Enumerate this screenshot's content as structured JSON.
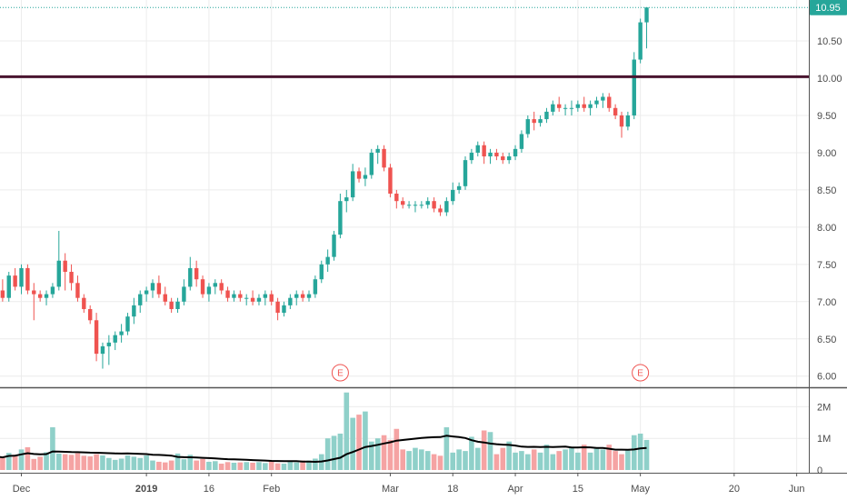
{
  "chart_data": {
    "type": "candlestick",
    "colors": {
      "up": "#26a69a",
      "down": "#ef5350",
      "vol_up": "#8fd0c9",
      "vol_down": "#f5a3a3",
      "avg_line": "#000000",
      "resistance": "#4a1530",
      "last_price": "#26a69a",
      "grid": "#ececec"
    },
    "price_axis": {
      "min": 5.85,
      "max": 11.05,
      "ticks": [
        "6.00",
        "6.50",
        "7.00",
        "7.50",
        "8.00",
        "8.50",
        "9.00",
        "9.50",
        "10.00",
        "10.50"
      ]
    },
    "volume_axis": {
      "max": 2500000,
      "ticks": [
        {
          "label": "0",
          "value": 0
        },
        {
          "label": "1M",
          "value": 1000000
        },
        {
          "label": "2M",
          "value": 2000000
        }
      ]
    },
    "x_labels": [
      {
        "label": "Dec",
        "index": 4
      },
      {
        "label": "2019",
        "index": 24
      },
      {
        "label": "16",
        "index": 34
      },
      {
        "label": "Feb",
        "index": 44
      },
      {
        "label": "Mar",
        "index": 63
      },
      {
        "label": "18",
        "index": 73
      },
      {
        "label": "Apr",
        "index": 83
      },
      {
        "label": "15",
        "index": 93
      },
      {
        "label": "May",
        "index": 103
      },
      {
        "label": "20",
        "index": 118
      },
      {
        "label": "Jun",
        "index": 128
      }
    ],
    "last_price": {
      "value": 10.95,
      "label": "10.95"
    },
    "resistance_level": 10.02,
    "earnings": [
      {
        "label": "E",
        "index": 55
      },
      {
        "label": "E",
        "index": 103
      }
    ],
    "candles": [
      [
        7.05,
        7.2,
        6.95,
        7.15,
        420000
      ],
      [
        7.15,
        7.3,
        7.0,
        7.05,
        380000
      ],
      [
        7.05,
        7.4,
        7.0,
        7.35,
        540000
      ],
      [
        7.35,
        7.45,
        7.15,
        7.2,
        480000
      ],
      [
        7.2,
        7.5,
        7.1,
        7.45,
        650000
      ],
      [
        7.45,
        7.5,
        7.1,
        7.15,
        720000
      ],
      [
        7.15,
        7.25,
        6.75,
        7.1,
        350000
      ],
      [
        7.1,
        7.15,
        7.0,
        7.05,
        420000
      ],
      [
        7.05,
        7.15,
        6.95,
        7.1,
        560000
      ],
      [
        7.1,
        7.25,
        7.05,
        7.2,
        1350000
      ],
      [
        7.2,
        7.95,
        7.15,
        7.55,
        520000
      ],
      [
        7.55,
        7.65,
        7.15,
        7.4,
        500000
      ],
      [
        7.4,
        7.5,
        7.15,
        7.25,
        480000
      ],
      [
        7.25,
        7.35,
        7.0,
        7.05,
        530000
      ],
      [
        7.05,
        7.1,
        6.85,
        6.9,
        450000
      ],
      [
        6.9,
        6.95,
        6.7,
        6.75,
        430000
      ],
      [
        6.75,
        6.85,
        6.2,
        6.3,
        500000
      ],
      [
        6.3,
        6.45,
        6.1,
        6.4,
        460000
      ],
      [
        6.4,
        6.55,
        6.15,
        6.45,
        380000
      ],
      [
        6.45,
        6.6,
        6.35,
        6.55,
        320000
      ],
      [
        6.55,
        6.7,
        6.45,
        6.6,
        360000
      ],
      [
        6.6,
        6.85,
        6.55,
        6.8,
        460000
      ],
      [
        6.8,
        7.05,
        6.7,
        6.95,
        420000
      ],
      [
        6.95,
        7.15,
        6.85,
        7.1,
        380000
      ],
      [
        7.1,
        7.2,
        7.0,
        7.15,
        460000
      ],
      [
        7.15,
        7.3,
        7.05,
        7.25,
        300000
      ],
      [
        7.25,
        7.35,
        7.05,
        7.1,
        260000
      ],
      [
        7.1,
        7.2,
        6.95,
        7.0,
        240000
      ],
      [
        7.0,
        7.05,
        6.85,
        6.9,
        300000
      ],
      [
        6.9,
        7.05,
        6.85,
        7.0,
        520000
      ],
      [
        7.0,
        7.3,
        6.95,
        7.2,
        340000
      ],
      [
        7.2,
        7.6,
        7.15,
        7.45,
        480000
      ],
      [
        7.45,
        7.55,
        7.2,
        7.3,
        300000
      ],
      [
        7.3,
        7.35,
        7.05,
        7.1,
        350000
      ],
      [
        7.1,
        7.25,
        7.0,
        7.2,
        260000
      ],
      [
        7.2,
        7.3,
        7.1,
        7.25,
        280000
      ],
      [
        7.25,
        7.3,
        7.1,
        7.15,
        200000
      ],
      [
        7.15,
        7.2,
        7.0,
        7.05,
        250000
      ],
      [
        7.05,
        7.15,
        7.0,
        7.1,
        230000
      ],
      [
        7.1,
        7.15,
        7.0,
        7.05,
        240000
      ],
      [
        7.05,
        7.1,
        6.95,
        7.05,
        250000
      ],
      [
        7.05,
        7.15,
        6.95,
        7.0,
        230000
      ],
      [
        7.0,
        7.1,
        6.95,
        7.05,
        250000
      ],
      [
        7.05,
        7.15,
        6.95,
        7.1,
        220000
      ],
      [
        7.1,
        7.15,
        6.95,
        7.0,
        270000
      ],
      [
        7.0,
        7.05,
        6.75,
        6.85,
        210000
      ],
      [
        6.85,
        7.0,
        6.8,
        6.95,
        200000
      ],
      [
        6.95,
        7.1,
        6.9,
        7.05,
        260000
      ],
      [
        7.05,
        7.15,
        6.95,
        7.1,
        240000
      ],
      [
        7.1,
        7.15,
        7.0,
        7.05,
        300000
      ],
      [
        7.05,
        7.15,
        7.0,
        7.1,
        300000
      ],
      [
        7.1,
        7.35,
        7.05,
        7.3,
        360000
      ],
      [
        7.3,
        7.55,
        7.25,
        7.5,
        500000
      ],
      [
        7.5,
        7.7,
        7.4,
        7.6,
        1000000
      ],
      [
        7.6,
        7.95,
        7.55,
        7.9,
        1080000
      ],
      [
        7.9,
        8.45,
        7.85,
        8.35,
        1150000
      ],
      [
        8.35,
        8.5,
        8.2,
        8.4,
        2450000
      ],
      [
        8.4,
        8.85,
        8.35,
        8.75,
        1650000
      ],
      [
        8.75,
        8.8,
        8.6,
        8.65,
        1750000
      ],
      [
        8.65,
        8.8,
        8.55,
        8.7,
        1850000
      ],
      [
        8.7,
        9.05,
        8.65,
        9.0,
        900000
      ],
      [
        9.0,
        9.1,
        8.85,
        9.05,
        1000000
      ],
      [
        9.05,
        9.1,
        8.75,
        8.8,
        1100000
      ],
      [
        8.8,
        8.85,
        8.4,
        8.45,
        950000
      ],
      [
        8.45,
        8.5,
        8.25,
        8.35,
        1300000
      ],
      [
        8.35,
        8.4,
        8.25,
        8.3,
        650000
      ],
      [
        8.3,
        8.35,
        8.25,
        8.3,
        600000
      ],
      [
        8.3,
        8.35,
        8.2,
        8.3,
        700000
      ],
      [
        8.3,
        8.35,
        8.25,
        8.3,
        650000
      ],
      [
        8.3,
        8.4,
        8.25,
        8.35,
        600000
      ],
      [
        8.35,
        8.4,
        8.2,
        8.25,
        500000
      ],
      [
        8.25,
        8.3,
        8.15,
        8.2,
        450000
      ],
      [
        8.2,
        8.4,
        8.15,
        8.35,
        1350000
      ],
      [
        8.35,
        8.6,
        8.3,
        8.5,
        550000
      ],
      [
        8.5,
        8.6,
        8.45,
        8.55,
        650000
      ],
      [
        8.55,
        8.95,
        8.5,
        8.9,
        600000
      ],
      [
        8.9,
        9.05,
        8.85,
        9.0,
        1050000
      ],
      [
        9.0,
        9.15,
        8.95,
        9.1,
        700000
      ],
      [
        9.1,
        9.15,
        8.85,
        8.95,
        1250000
      ],
      [
        8.95,
        9.05,
        8.85,
        9.0,
        1200000
      ],
      [
        9.0,
        9.05,
        8.9,
        8.95,
        500000
      ],
      [
        8.95,
        9.0,
        8.85,
        8.9,
        700000
      ],
      [
        8.9,
        9.0,
        8.85,
        8.95,
        900000
      ],
      [
        8.95,
        9.1,
        8.9,
        9.05,
        550000
      ],
      [
        9.05,
        9.3,
        9.0,
        9.25,
        600000
      ],
      [
        9.25,
        9.5,
        9.2,
        9.45,
        500000
      ],
      [
        9.45,
        9.55,
        9.3,
        9.4,
        650000
      ],
      [
        9.4,
        9.5,
        9.35,
        9.45,
        550000
      ],
      [
        9.45,
        9.6,
        9.4,
        9.55,
        800000
      ],
      [
        9.55,
        9.7,
        9.5,
        9.65,
        500000
      ],
      [
        9.65,
        9.75,
        9.55,
        9.6,
        600000
      ],
      [
        9.6,
        9.65,
        9.5,
        9.6,
        650000
      ],
      [
        9.6,
        9.7,
        9.5,
        9.6,
        700000
      ],
      [
        9.6,
        9.7,
        9.55,
        9.65,
        550000
      ],
      [
        9.65,
        9.75,
        9.55,
        9.6,
        800000
      ],
      [
        9.6,
        9.7,
        9.5,
        9.65,
        550000
      ],
      [
        9.65,
        9.75,
        9.6,
        9.7,
        700000
      ],
      [
        9.7,
        9.8,
        9.6,
        9.75,
        650000
      ],
      [
        9.75,
        9.8,
        9.55,
        9.6,
        800000
      ],
      [
        9.6,
        9.65,
        9.45,
        9.5,
        600000
      ],
      [
        9.5,
        9.55,
        9.2,
        9.35,
        500000
      ],
      [
        9.35,
        9.55,
        9.3,
        9.5,
        650000
      ],
      [
        9.5,
        10.35,
        9.45,
        10.25,
        1100000
      ],
      [
        10.25,
        10.8,
        10.2,
        10.75,
        1150000
      ],
      [
        10.75,
        10.95,
        10.4,
        10.95,
        950000
      ]
    ]
  }
}
